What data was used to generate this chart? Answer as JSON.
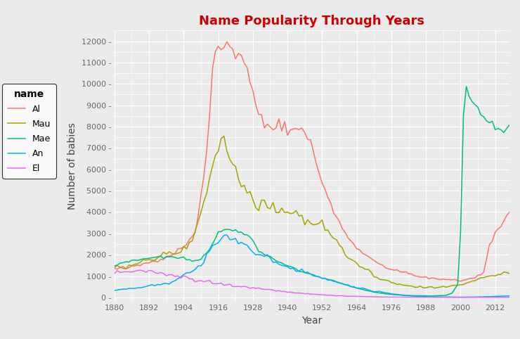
{
  "title": "Name Popularity Through Years",
  "title_color": "#CC0000",
  "xlabel": "Year",
  "ylabel": "Number of babies",
  "plot_bg_color": "#EBEBEB",
  "fig_bg_color": "#EBEBEB",
  "legend_bg_color": "#F0F0F0",
  "grid_color": "#FFFFFF",
  "legend_title": "name",
  "names": [
    "Al",
    "Mau",
    "Mae",
    "An",
    "El"
  ],
  "colors": {
    "Al": "#F8766D",
    "Mau": "#A3A500",
    "Mae": "#00BF7D",
    "An": "#00B0F6",
    "El": "#E76BF3"
  },
  "xlim": [
    1880,
    2017
  ],
  "ylim": [
    -200,
    12500
  ],
  "yticks": [
    0,
    1000,
    2000,
    3000,
    4000,
    5000,
    6000,
    7000,
    8000,
    9000,
    10000,
    11000,
    12000
  ],
  "xticks": [
    1880,
    1892,
    1904,
    1916,
    1928,
    1940,
    1952,
    1964,
    1976,
    1988,
    2000,
    2012
  ]
}
